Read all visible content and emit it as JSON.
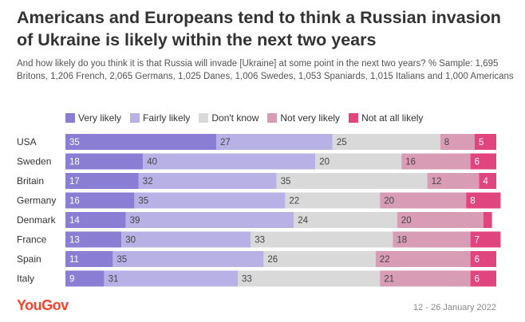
{
  "header": {
    "title": "Americans and Europeans tend to think a Russian invasion of Ukraine is likely within the next two years",
    "subtitle": "And how likely do you think it is that Russia will invade [Ukraine] at some point in the next two years? % Sample: 1,695 Britons, 1,206 French, 2,065 Germans, 1,025 Danes, 1,006 Swedes, 1,053 Spaniards, 1,015 Italians and 1,000 Americans"
  },
  "footer": {
    "logo": "YouGov",
    "date": "12 - 26 January 2022"
  },
  "colors": {
    "very_likely": "#8a7dd4",
    "fairly_likely": "#b8b1e6",
    "dont_know": "#d9d9d9",
    "not_very_likely": "#d99cb5",
    "not_at_all_likely": "#e0467d"
  },
  "chart_data": {
    "type": "bar",
    "orientation": "horizontal",
    "stacked": true,
    "categories": [
      "USA",
      "Sweden",
      "Britain",
      "Germany",
      "Denmark",
      "France",
      "Spain",
      "Italy"
    ],
    "series": [
      {
        "name": "Very likely",
        "color": "#8a7dd4",
        "values": [
          35,
          18,
          17,
          16,
          14,
          13,
          11,
          9
        ]
      },
      {
        "name": "Fairly likely",
        "color": "#b8b1e6",
        "values": [
          27,
          40,
          32,
          35,
          39,
          30,
          35,
          31
        ]
      },
      {
        "name": "Don't know",
        "color": "#d9d9d9",
        "values": [
          25,
          20,
          35,
          22,
          24,
          33,
          26,
          33
        ]
      },
      {
        "name": "Not very likely",
        "color": "#d99cb5",
        "values": [
          8,
          16,
          12,
          20,
          20,
          18,
          22,
          21
        ]
      },
      {
        "name": "Not at all likely",
        "color": "#e0467d",
        "values": [
          5,
          6,
          4,
          8,
          2,
          7,
          6,
          6
        ]
      }
    ],
    "value_labels_shown_below": 3,
    "xlim": [
      0,
      100
    ],
    "legend": "top",
    "grid": false
  }
}
